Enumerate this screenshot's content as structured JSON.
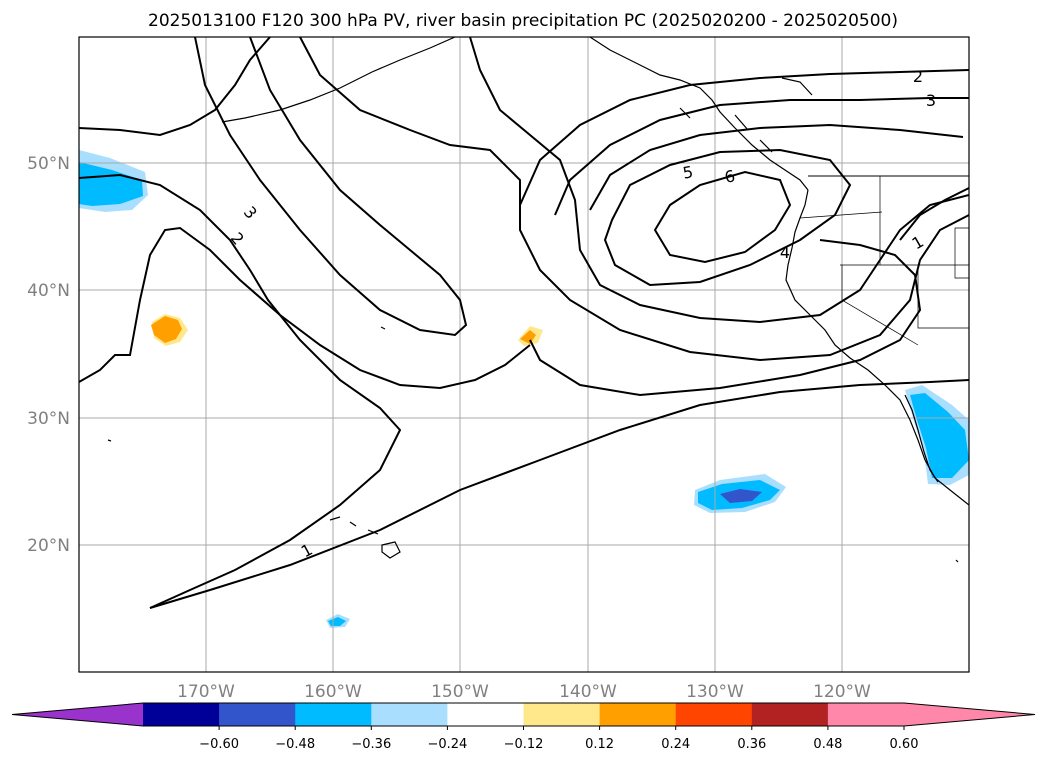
{
  "title": "2025013100 F120 300 hPa PV, river basin precipitation PC (2025020200 - 2025020500)",
  "map": {
    "extent": {
      "lon_min": -180,
      "lon_max": -110,
      "lat_min": 10,
      "lat_max": 60
    },
    "gridlines": true,
    "lat_labels": [
      "50°N",
      "40°N",
      "30°N",
      "20°N"
    ],
    "lon_labels": [
      "170°W",
      "160°W",
      "150°W",
      "140°W",
      "130°W",
      "120°W"
    ],
    "contour_labels": [
      "1",
      "2",
      "3",
      "4",
      "5",
      "6",
      "2",
      "3",
      "1"
    ],
    "colors": {
      "grid": "#a8a8a8",
      "contour": "#000000",
      "coast": "#000000"
    }
  },
  "colorbar": {
    "ticks": [
      "−0.60",
      "−0.48",
      "−0.36",
      "−0.24",
      "−0.12",
      "0.12",
      "0.24",
      "0.36",
      "0.48",
      "0.60"
    ],
    "colors": [
      "#9933cc",
      "#000099",
      "#3355cc",
      "#00bbff",
      "#aadeff",
      "#ffffff",
      "#ffe88c",
      "#ffa000",
      "#ff4500",
      "#b22222",
      "#ff88aa",
      "#ff88aa"
    ],
    "extend": "both"
  }
}
